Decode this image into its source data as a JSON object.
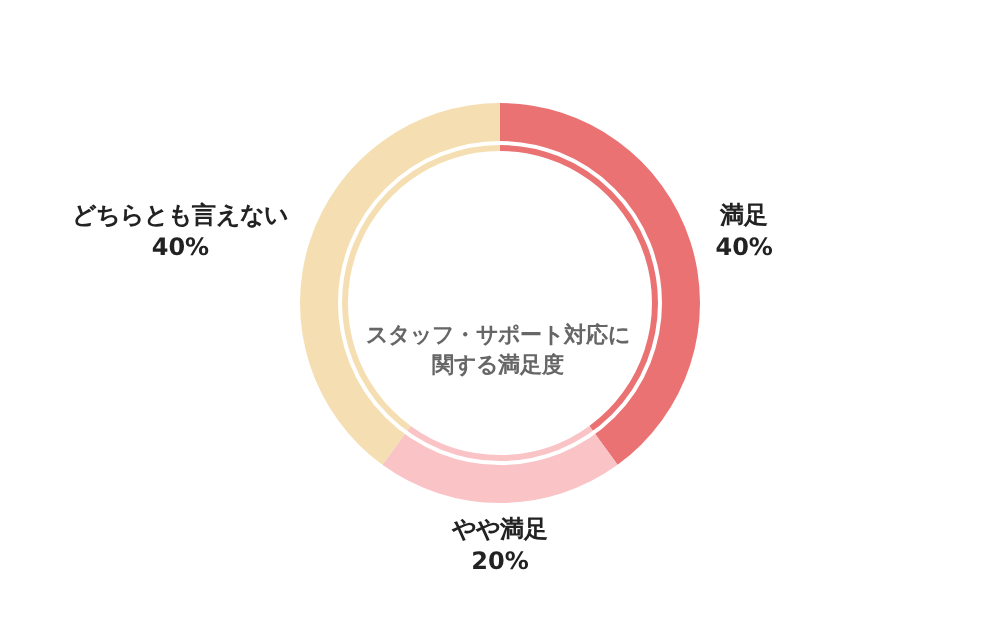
{
  "chart_data": {
    "type": "donut",
    "title": "スタッフ・サポート対応に関する満足度",
    "categories": [
      "満足",
      "やや満足",
      "どちらとも言えない"
    ],
    "values": [
      40,
      20,
      40
    ],
    "value_labels": [
      "40%",
      "20%",
      "40%"
    ],
    "colors": [
      "#eb7273",
      "#fac3c6",
      "#f5dfb2"
    ],
    "legend": false
  }
}
